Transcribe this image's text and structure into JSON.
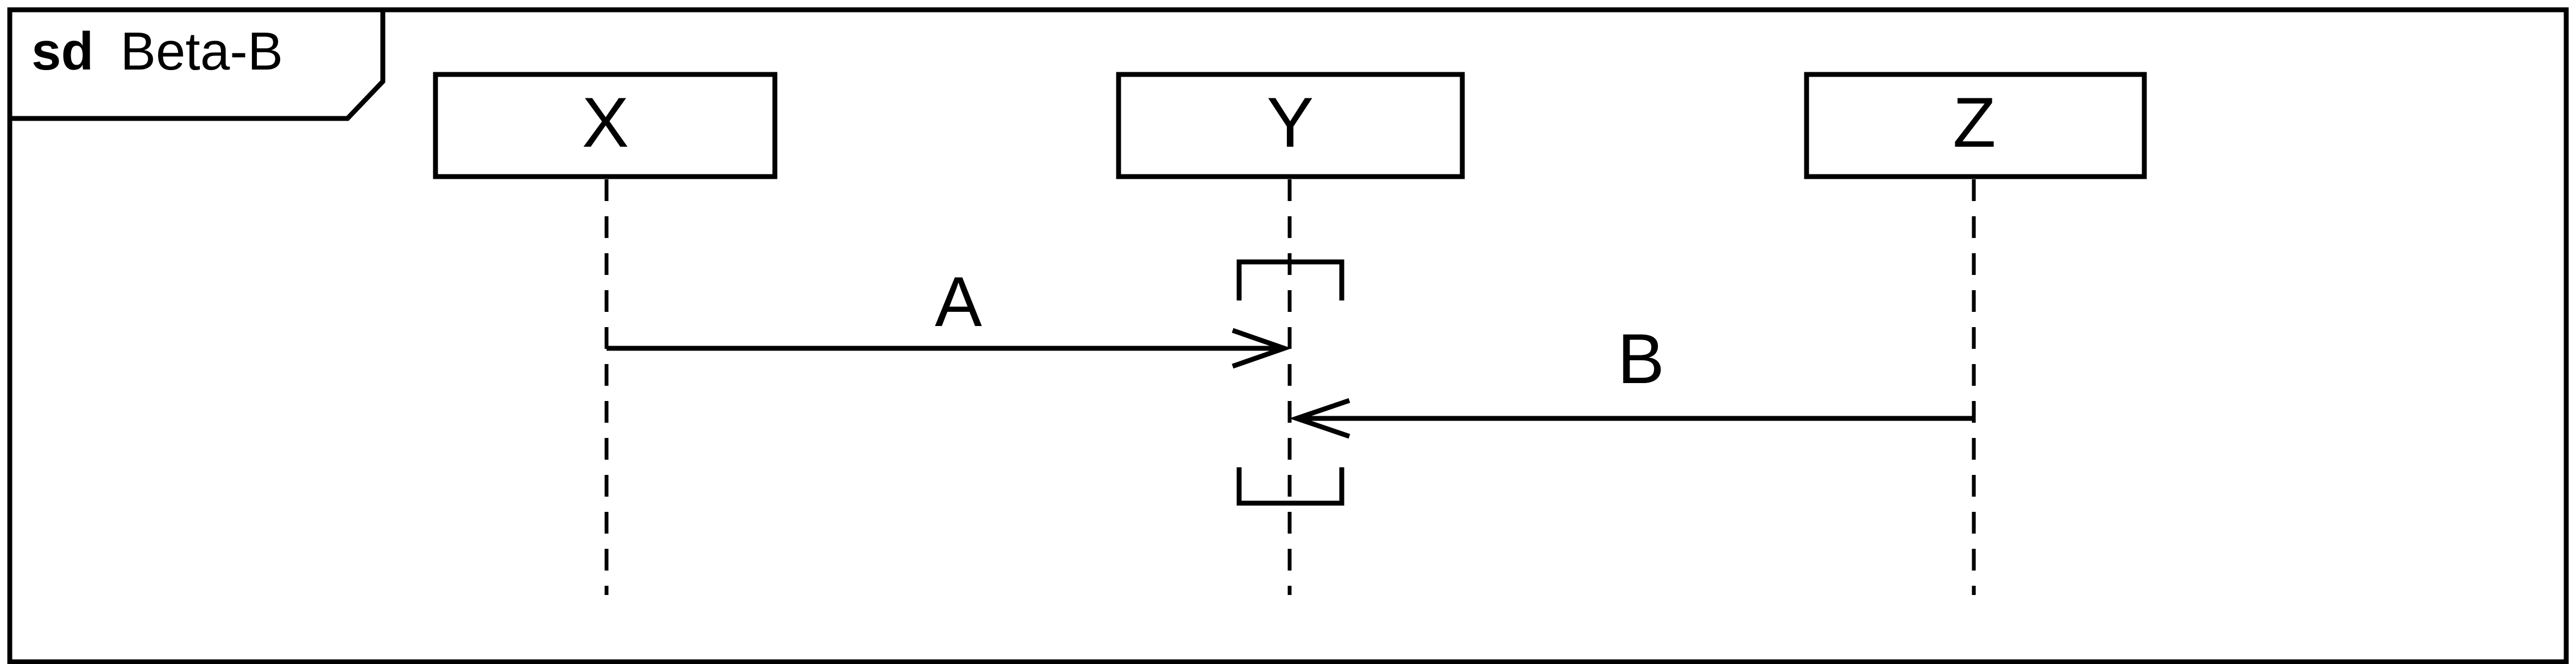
{
  "frame": {
    "keyword": "sd",
    "name": "Beta-B"
  },
  "participants": [
    {
      "id": "x",
      "name": "X"
    },
    {
      "id": "y",
      "name": "Y"
    },
    {
      "id": "z",
      "name": "Z"
    }
  ],
  "messages": [
    {
      "id": "a",
      "label": "A",
      "from": "X",
      "to": "Y"
    },
    {
      "id": "b",
      "label": "B",
      "from": "Z",
      "to": "Y"
    }
  ],
  "colors": {
    "line": "#000000",
    "background": "#ffffff"
  }
}
